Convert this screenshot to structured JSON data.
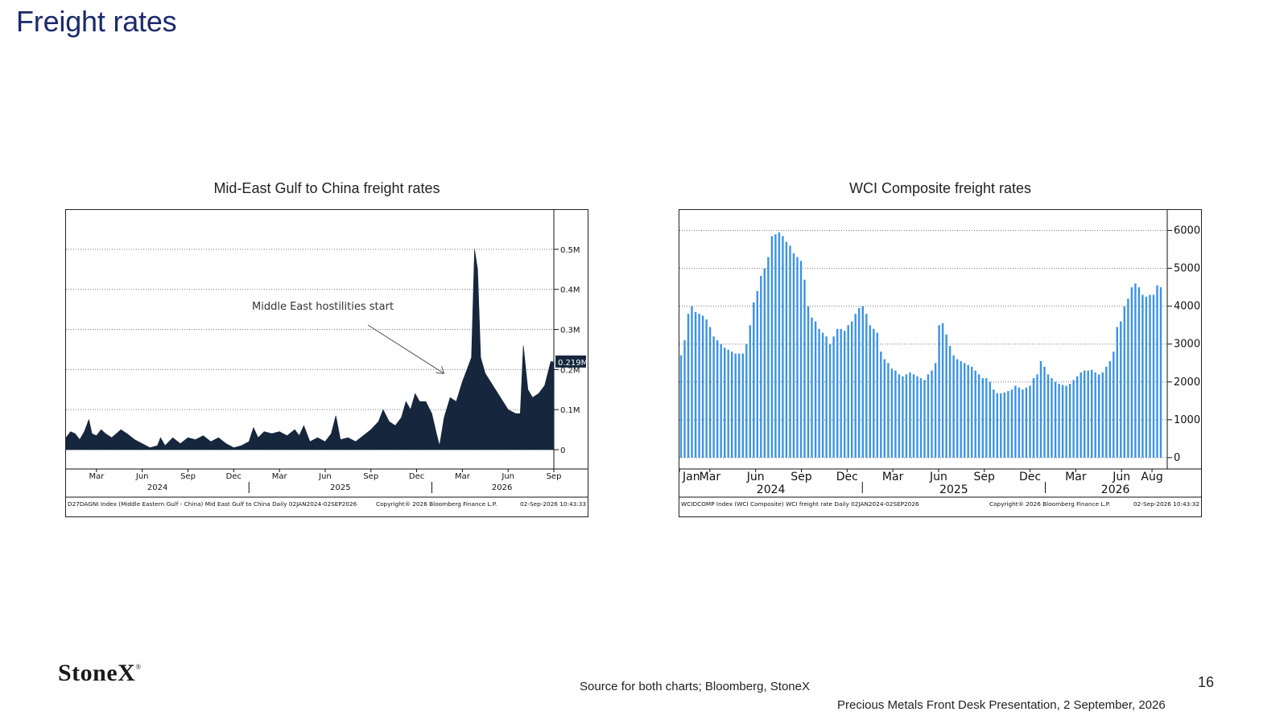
{
  "page": {
    "title": "Freight rates",
    "logo": "StoneX",
    "logo_mark": "®",
    "source": "Source for both charts; Bloomberg, StoneX",
    "page_number": "16",
    "footer": "Precious Metals Front Desk Presentation, 2 September, 2026"
  },
  "chart_data": [
    {
      "type": "area",
      "title": "Mid-East Gulf to China freight rates",
      "ylim": [
        0,
        0.55
      ],
      "yticks": [
        {
          "v": 0,
          "label": "0"
        },
        {
          "v": 0.1,
          "label": "0.1M"
        },
        {
          "v": 0.2,
          "label": "0.2M"
        },
        {
          "v": 0.3,
          "label": "0.3M"
        },
        {
          "v": 0.4,
          "label": "0.4M"
        },
        {
          "v": 0.5,
          "label": "0.5M"
        }
      ],
      "xmax": 32,
      "xticks": [
        {
          "m": 2,
          "label": "Mar"
        },
        {
          "m": 5,
          "label": "Jun"
        },
        {
          "m": 8,
          "label": "Sep"
        },
        {
          "m": 11,
          "label": "Dec"
        },
        {
          "m": 14,
          "label": "Mar"
        },
        {
          "m": 17,
          "label": "Jun"
        },
        {
          "m": 20,
          "label": "Sep"
        },
        {
          "m": 23,
          "label": "Dec"
        },
        {
          "m": 26,
          "label": "Mar"
        },
        {
          "m": 29,
          "label": "Jun"
        },
        {
          "m": 32,
          "label": "Sep"
        }
      ],
      "years": [
        {
          "m": 6,
          "label": "2024"
        },
        {
          "m": 18,
          "label": "2025"
        },
        {
          "m": 28.6,
          "label": "2026"
        }
      ],
      "year_dividers": [
        12,
        24
      ],
      "last_value_label": "0.219M",
      "last_value": 0.219,
      "annotation": {
        "text": "Middle East hostilities start",
        "x": 24.8,
        "y": 0.19
      },
      "bottom_text_left": "D27DAGNI Index (Middle Eastern Gulf - China) Mid East Gulf to China Daily 02JAN2024-02SEP2026",
      "bottom_text_mid": "Copyright® 2026 Bloomberg Finance L.P.",
      "bottom_text_right": "02-Sep-2026 10:43:33",
      "color": "#15263d",
      "series": [
        {
          "x": 0,
          "y": 0.03
        },
        {
          "x": 0.3,
          "y": 0.045
        },
        {
          "x": 0.6,
          "y": 0.04
        },
        {
          "x": 0.9,
          "y": 0.025
        },
        {
          "x": 1.2,
          "y": 0.045
        },
        {
          "x": 1.5,
          "y": 0.075
        },
        {
          "x": 1.7,
          "y": 0.04
        },
        {
          "x": 2.0,
          "y": 0.035
        },
        {
          "x": 2.3,
          "y": 0.05
        },
        {
          "x": 2.6,
          "y": 0.04
        },
        {
          "x": 3.0,
          "y": 0.03
        },
        {
          "x": 3.3,
          "y": 0.04
        },
        {
          "x": 3.6,
          "y": 0.05
        },
        {
          "x": 4.0,
          "y": 0.04
        },
        {
          "x": 4.5,
          "y": 0.025
        },
        {
          "x": 5.0,
          "y": 0.015
        },
        {
          "x": 5.5,
          "y": 0.005
        },
        {
          "x": 6.0,
          "y": 0.01
        },
        {
          "x": 6.2,
          "y": 0.03
        },
        {
          "x": 6.5,
          "y": 0.01
        },
        {
          "x": 7.0,
          "y": 0.03
        },
        {
          "x": 7.5,
          "y": 0.015
        },
        {
          "x": 8.0,
          "y": 0.03
        },
        {
          "x": 8.5,
          "y": 0.025
        },
        {
          "x": 9.0,
          "y": 0.035
        },
        {
          "x": 9.5,
          "y": 0.02
        },
        {
          "x": 10.0,
          "y": 0.03
        },
        {
          "x": 10.5,
          "y": 0.015
        },
        {
          "x": 11.0,
          "y": 0.005
        },
        {
          "x": 11.5,
          "y": 0.01
        },
        {
          "x": 12.0,
          "y": 0.02
        },
        {
          "x": 12.3,
          "y": 0.055
        },
        {
          "x": 12.6,
          "y": 0.03
        },
        {
          "x": 13.0,
          "y": 0.045
        },
        {
          "x": 13.5,
          "y": 0.04
        },
        {
          "x": 14.0,
          "y": 0.045
        },
        {
          "x": 14.5,
          "y": 0.035
        },
        {
          "x": 15.0,
          "y": 0.05
        },
        {
          "x": 15.3,
          "y": 0.035
        },
        {
          "x": 15.6,
          "y": 0.06
        },
        {
          "x": 16.0,
          "y": 0.02
        },
        {
          "x": 16.5,
          "y": 0.03
        },
        {
          "x": 17.0,
          "y": 0.02
        },
        {
          "x": 17.4,
          "y": 0.04
        },
        {
          "x": 17.7,
          "y": 0.085
        },
        {
          "x": 18.0,
          "y": 0.025
        },
        {
          "x": 18.5,
          "y": 0.03
        },
        {
          "x": 19.0,
          "y": 0.02
        },
        {
          "x": 19.5,
          "y": 0.035
        },
        {
          "x": 20.0,
          "y": 0.05
        },
        {
          "x": 20.5,
          "y": 0.07
        },
        {
          "x": 20.8,
          "y": 0.1
        },
        {
          "x": 21.2,
          "y": 0.07
        },
        {
          "x": 21.6,
          "y": 0.06
        },
        {
          "x": 22.0,
          "y": 0.08
        },
        {
          "x": 22.3,
          "y": 0.12
        },
        {
          "x": 22.6,
          "y": 0.1
        },
        {
          "x": 22.9,
          "y": 0.14
        },
        {
          "x": 23.2,
          "y": 0.12
        },
        {
          "x": 23.6,
          "y": 0.12
        },
        {
          "x": 24.0,
          "y": 0.09
        },
        {
          "x": 24.3,
          "y": 0.04
        },
        {
          "x": 24.5,
          "y": 0.01
        },
        {
          "x": 24.8,
          "y": 0.08
        },
        {
          "x": 25.2,
          "y": 0.13
        },
        {
          "x": 25.6,
          "y": 0.12
        },
        {
          "x": 26.0,
          "y": 0.17
        },
        {
          "x": 26.3,
          "y": 0.2
        },
        {
          "x": 26.6,
          "y": 0.23
        },
        {
          "x": 26.8,
          "y": 0.5
        },
        {
          "x": 27.0,
          "y": 0.45
        },
        {
          "x": 27.2,
          "y": 0.23
        },
        {
          "x": 27.5,
          "y": 0.19
        },
        {
          "x": 28.0,
          "y": 0.16
        },
        {
          "x": 28.5,
          "y": 0.13
        },
        {
          "x": 29.0,
          "y": 0.1
        },
        {
          "x": 29.5,
          "y": 0.09
        },
        {
          "x": 29.8,
          "y": 0.09
        },
        {
          "x": 30.0,
          "y": 0.26
        },
        {
          "x": 30.3,
          "y": 0.15
        },
        {
          "x": 30.6,
          "y": 0.13
        },
        {
          "x": 31.0,
          "y": 0.14
        },
        {
          "x": 31.4,
          "y": 0.16
        },
        {
          "x": 31.8,
          "y": 0.22
        },
        {
          "x": 32.0,
          "y": 0.219
        }
      ]
    },
    {
      "type": "bar",
      "title": "WCI Composite freight rates",
      "ylim": [
        -300,
        6500
      ],
      "yticks": [
        {
          "v": 0,
          "label": "0"
        },
        {
          "v": 1000,
          "label": "1000"
        },
        {
          "v": 2000,
          "label": "2000"
        },
        {
          "v": 3000,
          "label": "3000"
        },
        {
          "v": 4000,
          "label": "4000"
        },
        {
          "v": 5000,
          "label": "5000"
        },
        {
          "v": 6000,
          "label": "6000"
        }
      ],
      "xmax": 32,
      "xticks": [
        {
          "m": 0,
          "label": "Jan"
        },
        {
          "m": 2,
          "label": "Mar"
        },
        {
          "m": 5,
          "label": "Jun"
        },
        {
          "m": 8,
          "label": "Sep"
        },
        {
          "m": 11,
          "label": "Dec"
        },
        {
          "m": 14,
          "label": "Mar"
        },
        {
          "m": 17,
          "label": "Jun"
        },
        {
          "m": 20,
          "label": "Sep"
        },
        {
          "m": 23,
          "label": "Dec"
        },
        {
          "m": 26,
          "label": "Mar"
        },
        {
          "m": 29,
          "label": "Jun"
        },
        {
          "m": 31,
          "label": "Aug"
        }
      ],
      "years": [
        {
          "m": 6,
          "label": "2024"
        },
        {
          "m": 18,
          "label": "2025"
        },
        {
          "m": 28.6,
          "label": "2026"
        }
      ],
      "year_dividers": [
        12,
        24
      ],
      "bottom_text_left": "WCIDCOMP Index (WCI Composite) WCI freight rate Daily 02JAN2024-02SEP2026",
      "bottom_text_mid": "Copyright® 2026 Bloomberg Finance L.P.",
      "bottom_text_right": "02-Sep-2026 10:43:32",
      "color": "#3b93e6",
      "weekly_values": [
        2700,
        3100,
        3800,
        4000,
        3850,
        3800,
        3750,
        3650,
        3450,
        3200,
        3100,
        3000,
        2900,
        2850,
        2800,
        2750,
        2750,
        2750,
        3000,
        3500,
        4100,
        4400,
        4800,
        5000,
        5300,
        5850,
        5900,
        5950,
        5850,
        5700,
        5600,
        5400,
        5300,
        5200,
        4700,
        4000,
        3700,
        3600,
        3400,
        3300,
        3200,
        3000,
        3200,
        3400,
        3400,
        3350,
        3500,
        3600,
        3800,
        3950,
        4000,
        3800,
        3500,
        3400,
        3300,
        2800,
        2600,
        2500,
        2350,
        2300,
        2200,
        2150,
        2200,
        2250,
        2200,
        2150,
        2100,
        2050,
        2200,
        2300,
        2500,
        3500,
        3550,
        3250,
        2950,
        2700,
        2600,
        2550,
        2500,
        2450,
        2400,
        2300,
        2200,
        2100,
        2100,
        2000,
        1800,
        1700,
        1700,
        1720,
        1760,
        1800,
        1900,
        1850,
        1800,
        1850,
        1900,
        2100,
        2200,
        2550,
        2400,
        2200,
        2100,
        2000,
        1950,
        1920,
        1900,
        1950,
        2050,
        2150,
        2250,
        2300,
        2300,
        2320,
        2250,
        2200,
        2250,
        2400,
        2550,
        2800,
        3450,
        3600,
        4000,
        4200,
        4500,
        4600,
        4500,
        4300,
        4250,
        4300,
        4300,
        4550,
        4500
      ]
    }
  ]
}
